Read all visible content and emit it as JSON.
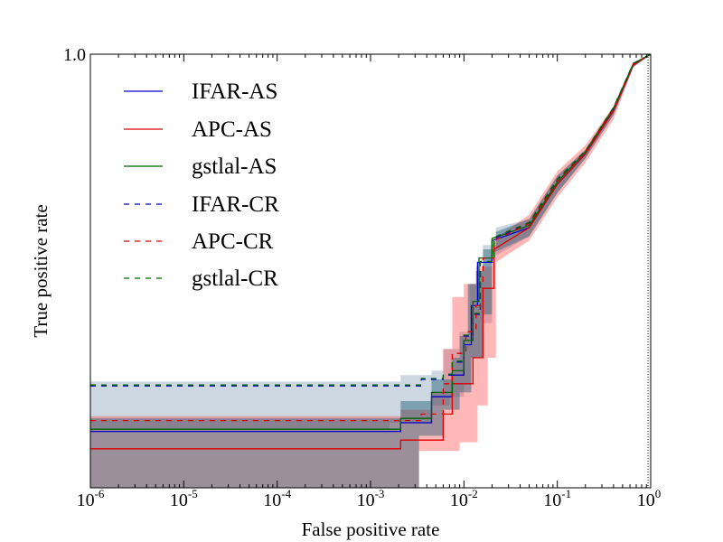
{
  "chart_data": {
    "type": "line",
    "title": "",
    "xlabel": "False positive rate",
    "ylabel": "True positive rate",
    "x_scale": "log",
    "xlim": [
      1e-06,
      1.0
    ],
    "ylim": [
      0.0,
      1.0
    ],
    "x_ticks": [
      {
        "base": "10",
        "exp": "-6",
        "value": 1e-06
      },
      {
        "base": "10",
        "exp": "-5",
        "value": 1e-05
      },
      {
        "base": "10",
        "exp": "-4",
        "value": 0.0001
      },
      {
        "base": "10",
        "exp": "-3",
        "value": 0.001
      },
      {
        "base": "10",
        "exp": "-2",
        "value": 0.01
      },
      {
        "base": "10",
        "exp": "-1",
        "value": 0.1
      },
      {
        "base": "10",
        "exp": "0",
        "value": 1.0
      }
    ],
    "y_tick_labels": [
      {
        "label": "1.0",
        "value": 1.0
      }
    ],
    "legend_position": "top-left",
    "bands": [
      {
        "name": "IFAR-CR band",
        "color": "#4a6f96",
        "opacity": 0.28,
        "upper": [
          [
            1e-06,
            0.245
          ],
          [
            0.0021,
            0.245
          ],
          [
            0.0021,
            0.26
          ],
          [
            0.0045,
            0.26
          ],
          [
            0.0045,
            0.27
          ],
          [
            0.006,
            0.27
          ],
          [
            0.006,
            0.32
          ],
          [
            0.009,
            0.32
          ],
          [
            0.009,
            0.36
          ],
          [
            0.0115,
            0.36
          ],
          [
            0.0115,
            0.47
          ],
          [
            0.0135,
            0.47
          ],
          [
            0.0135,
            0.5
          ],
          [
            0.016,
            0.5
          ],
          [
            0.016,
            0.56
          ],
          [
            0.022,
            0.56
          ],
          [
            0.022,
            0.6
          ],
          [
            0.05,
            0.62
          ],
          [
            0.1,
            0.72
          ],
          [
            0.2,
            0.78
          ],
          [
            0.4,
            0.88
          ],
          [
            0.65,
            0.98
          ],
          [
            1.0,
            1.0
          ]
        ],
        "lower": [
          [
            1e-06,
            0.135
          ],
          [
            0.0016,
            0.135
          ],
          [
            0.0016,
            0.15
          ],
          [
            0.0045,
            0.15
          ],
          [
            0.0045,
            0.19
          ],
          [
            0.007,
            0.19
          ],
          [
            0.007,
            0.21
          ],
          [
            0.01,
            0.21
          ],
          [
            0.01,
            0.24
          ],
          [
            0.012,
            0.24
          ],
          [
            0.012,
            0.3
          ],
          [
            0.016,
            0.3
          ],
          [
            0.016,
            0.38
          ],
          [
            0.02,
            0.38
          ],
          [
            0.02,
            0.53
          ],
          [
            0.05,
            0.58
          ],
          [
            0.1,
            0.68
          ],
          [
            0.2,
            0.76
          ],
          [
            0.4,
            0.86
          ],
          [
            0.65,
            0.97
          ],
          [
            1.0,
            1.0
          ]
        ]
      },
      {
        "name": "APC band",
        "color": "#ff3030",
        "opacity": 0.35,
        "upper": [
          [
            1e-06,
            0.165
          ],
          [
            0.0021,
            0.165
          ],
          [
            0.0021,
            0.18
          ],
          [
            0.0045,
            0.18
          ],
          [
            0.0045,
            0.22
          ],
          [
            0.006,
            0.22
          ],
          [
            0.006,
            0.32
          ],
          [
            0.0075,
            0.32
          ],
          [
            0.0075,
            0.44
          ],
          [
            0.01,
            0.44
          ],
          [
            0.01,
            0.47
          ],
          [
            0.0135,
            0.47
          ],
          [
            0.0135,
            0.51
          ],
          [
            0.02,
            0.51
          ],
          [
            0.02,
            0.57
          ],
          [
            0.05,
            0.63
          ],
          [
            0.1,
            0.73
          ],
          [
            0.2,
            0.79
          ],
          [
            0.4,
            0.88
          ],
          [
            0.65,
            0.98
          ],
          [
            1.0,
            1.0
          ]
        ],
        "lower": [
          [
            1e-06,
            0.0
          ],
          [
            0.0033,
            0.0
          ],
          [
            0.0033,
            0.085
          ],
          [
            0.009,
            0.085
          ],
          [
            0.009,
            0.105
          ],
          [
            0.014,
            0.105
          ],
          [
            0.014,
            0.19
          ],
          [
            0.018,
            0.19
          ],
          [
            0.018,
            0.3
          ],
          [
            0.022,
            0.3
          ],
          [
            0.022,
            0.52
          ],
          [
            0.05,
            0.57
          ],
          [
            0.1,
            0.67
          ],
          [
            0.2,
            0.75
          ],
          [
            0.4,
            0.85
          ],
          [
            0.65,
            0.97
          ],
          [
            1.0,
            1.0
          ]
        ]
      },
      {
        "name": "IFAR-AS band",
        "color": "#1e5f78",
        "opacity": 0.45,
        "upper": [
          [
            1e-06,
            0.16
          ],
          [
            0.0021,
            0.16
          ],
          [
            0.0021,
            0.2
          ],
          [
            0.0045,
            0.2
          ],
          [
            0.0045,
            0.25
          ],
          [
            0.0075,
            0.25
          ],
          [
            0.0075,
            0.3
          ],
          [
            0.009,
            0.3
          ],
          [
            0.009,
            0.35
          ],
          [
            0.011,
            0.35
          ],
          [
            0.011,
            0.47
          ],
          [
            0.0135,
            0.47
          ],
          [
            0.0135,
            0.5
          ],
          [
            0.016,
            0.5
          ],
          [
            0.016,
            0.55
          ],
          [
            0.022,
            0.55
          ],
          [
            0.022,
            0.59
          ],
          [
            0.05,
            0.62
          ],
          [
            0.1,
            0.72
          ],
          [
            0.2,
            0.78
          ],
          [
            0.4,
            0.88
          ],
          [
            0.65,
            0.98
          ],
          [
            1.0,
            1.0
          ]
        ],
        "lower": [
          [
            1e-06,
            0.0
          ],
          [
            0.0033,
            0.0
          ],
          [
            0.0033,
            0.12
          ],
          [
            0.006,
            0.12
          ],
          [
            0.006,
            0.18
          ],
          [
            0.009,
            0.18
          ],
          [
            0.009,
            0.22
          ],
          [
            0.012,
            0.22
          ],
          [
            0.012,
            0.3
          ],
          [
            0.016,
            0.3
          ],
          [
            0.016,
            0.4
          ],
          [
            0.02,
            0.4
          ],
          [
            0.02,
            0.54
          ],
          [
            0.05,
            0.58
          ],
          [
            0.1,
            0.68
          ],
          [
            0.2,
            0.76
          ],
          [
            0.4,
            0.86
          ],
          [
            0.65,
            0.97
          ],
          [
            1.0,
            1.0
          ]
        ]
      }
    ],
    "series": [
      {
        "name": "IFAR-AS",
        "color": "#0000cc",
        "dash": "solid",
        "points": [
          [
            1e-06,
            0.13
          ],
          [
            0.0021,
            0.13
          ],
          [
            0.0021,
            0.15
          ],
          [
            0.0045,
            0.15
          ],
          [
            0.0045,
            0.21
          ],
          [
            0.0075,
            0.21
          ],
          [
            0.0075,
            0.26
          ],
          [
            0.01,
            0.26
          ],
          [
            0.01,
            0.33
          ],
          [
            0.012,
            0.33
          ],
          [
            0.012,
            0.42
          ],
          [
            0.014,
            0.42
          ],
          [
            0.014,
            0.52
          ],
          [
            0.02,
            0.52
          ],
          [
            0.02,
            0.57
          ],
          [
            0.05,
            0.6
          ],
          [
            0.1,
            0.7
          ],
          [
            0.2,
            0.77
          ],
          [
            0.4,
            0.87
          ],
          [
            0.65,
            0.975
          ],
          [
            1.0,
            1.0
          ]
        ]
      },
      {
        "name": "APC-AS",
        "color": "#dd0000",
        "dash": "solid",
        "points": [
          [
            1e-06,
            0.09
          ],
          [
            0.0021,
            0.09
          ],
          [
            0.0021,
            0.11
          ],
          [
            0.006,
            0.11
          ],
          [
            0.006,
            0.17
          ],
          [
            0.0075,
            0.17
          ],
          [
            0.0075,
            0.24
          ],
          [
            0.0125,
            0.24
          ],
          [
            0.0125,
            0.3
          ],
          [
            0.016,
            0.3
          ],
          [
            0.016,
            0.46
          ],
          [
            0.021,
            0.46
          ],
          [
            0.021,
            0.55
          ],
          [
            0.05,
            0.6
          ],
          [
            0.1,
            0.7
          ],
          [
            0.2,
            0.77
          ],
          [
            0.4,
            0.87
          ],
          [
            0.65,
            0.975
          ],
          [
            1.0,
            1.0
          ]
        ]
      },
      {
        "name": "gstlal-AS",
        "color": "#006400",
        "dash": "solid",
        "points": [
          [
            1e-06,
            0.135
          ],
          [
            0.0021,
            0.135
          ],
          [
            0.0021,
            0.16
          ],
          [
            0.0045,
            0.16
          ],
          [
            0.0045,
            0.22
          ],
          [
            0.0075,
            0.22
          ],
          [
            0.0075,
            0.27
          ],
          [
            0.01,
            0.27
          ],
          [
            0.01,
            0.34
          ],
          [
            0.0125,
            0.34
          ],
          [
            0.0125,
            0.43
          ],
          [
            0.0145,
            0.43
          ],
          [
            0.0145,
            0.53
          ],
          [
            0.02,
            0.53
          ],
          [
            0.02,
            0.575
          ],
          [
            0.05,
            0.605
          ],
          [
            0.1,
            0.705
          ],
          [
            0.2,
            0.775
          ],
          [
            0.4,
            0.875
          ],
          [
            0.65,
            0.978
          ],
          [
            1.0,
            1.0
          ]
        ]
      },
      {
        "name": "IFAR-CR",
        "color": "#0000cc",
        "dash": "dashed",
        "points": [
          [
            1e-06,
            0.235
          ],
          [
            0.0035,
            0.235
          ],
          [
            0.0035,
            0.25
          ],
          [
            0.006,
            0.25
          ],
          [
            0.006,
            0.26
          ],
          [
            0.0075,
            0.26
          ],
          [
            0.0075,
            0.29
          ],
          [
            0.01,
            0.29
          ],
          [
            0.01,
            0.35
          ],
          [
            0.0125,
            0.35
          ],
          [
            0.0125,
            0.4
          ],
          [
            0.015,
            0.4
          ],
          [
            0.015,
            0.52
          ],
          [
            0.021,
            0.52
          ],
          [
            0.021,
            0.575
          ],
          [
            0.05,
            0.61
          ],
          [
            0.1,
            0.71
          ],
          [
            0.2,
            0.775
          ],
          [
            0.4,
            0.875
          ],
          [
            0.65,
            0.978
          ],
          [
            1.0,
            1.0
          ]
        ]
      },
      {
        "name": "APC-CR",
        "color": "#dd0000",
        "dash": "dashed",
        "points": [
          [
            1e-06,
            0.155
          ],
          [
            0.0035,
            0.155
          ],
          [
            0.0035,
            0.17
          ],
          [
            0.006,
            0.17
          ],
          [
            0.006,
            0.24
          ],
          [
            0.0075,
            0.24
          ],
          [
            0.0075,
            0.31
          ],
          [
            0.0105,
            0.31
          ],
          [
            0.0105,
            0.36
          ],
          [
            0.0135,
            0.36
          ],
          [
            0.0135,
            0.42
          ],
          [
            0.016,
            0.42
          ],
          [
            0.016,
            0.53
          ],
          [
            0.021,
            0.53
          ],
          [
            0.021,
            0.57
          ],
          [
            0.05,
            0.61
          ],
          [
            0.1,
            0.71
          ],
          [
            0.2,
            0.775
          ],
          [
            0.4,
            0.875
          ],
          [
            0.65,
            0.978
          ],
          [
            1.0,
            1.0
          ]
        ]
      },
      {
        "name": "gstlal-CR",
        "color": "#006400",
        "dash": "dashed",
        "points": [
          [
            1e-06,
            0.237
          ],
          [
            0.0035,
            0.237
          ],
          [
            0.0035,
            0.252
          ],
          [
            0.006,
            0.252
          ],
          [
            0.006,
            0.262
          ],
          [
            0.0075,
            0.262
          ],
          [
            0.0075,
            0.292
          ],
          [
            0.01,
            0.292
          ],
          [
            0.01,
            0.352
          ],
          [
            0.0125,
            0.352
          ],
          [
            0.0125,
            0.402
          ],
          [
            0.015,
            0.402
          ],
          [
            0.015,
            0.522
          ],
          [
            0.021,
            0.522
          ],
          [
            0.021,
            0.577
          ],
          [
            0.05,
            0.612
          ],
          [
            0.1,
            0.712
          ],
          [
            0.2,
            0.777
          ],
          [
            0.4,
            0.877
          ],
          [
            0.65,
            0.979
          ],
          [
            1.0,
            1.0
          ]
        ]
      }
    ]
  }
}
